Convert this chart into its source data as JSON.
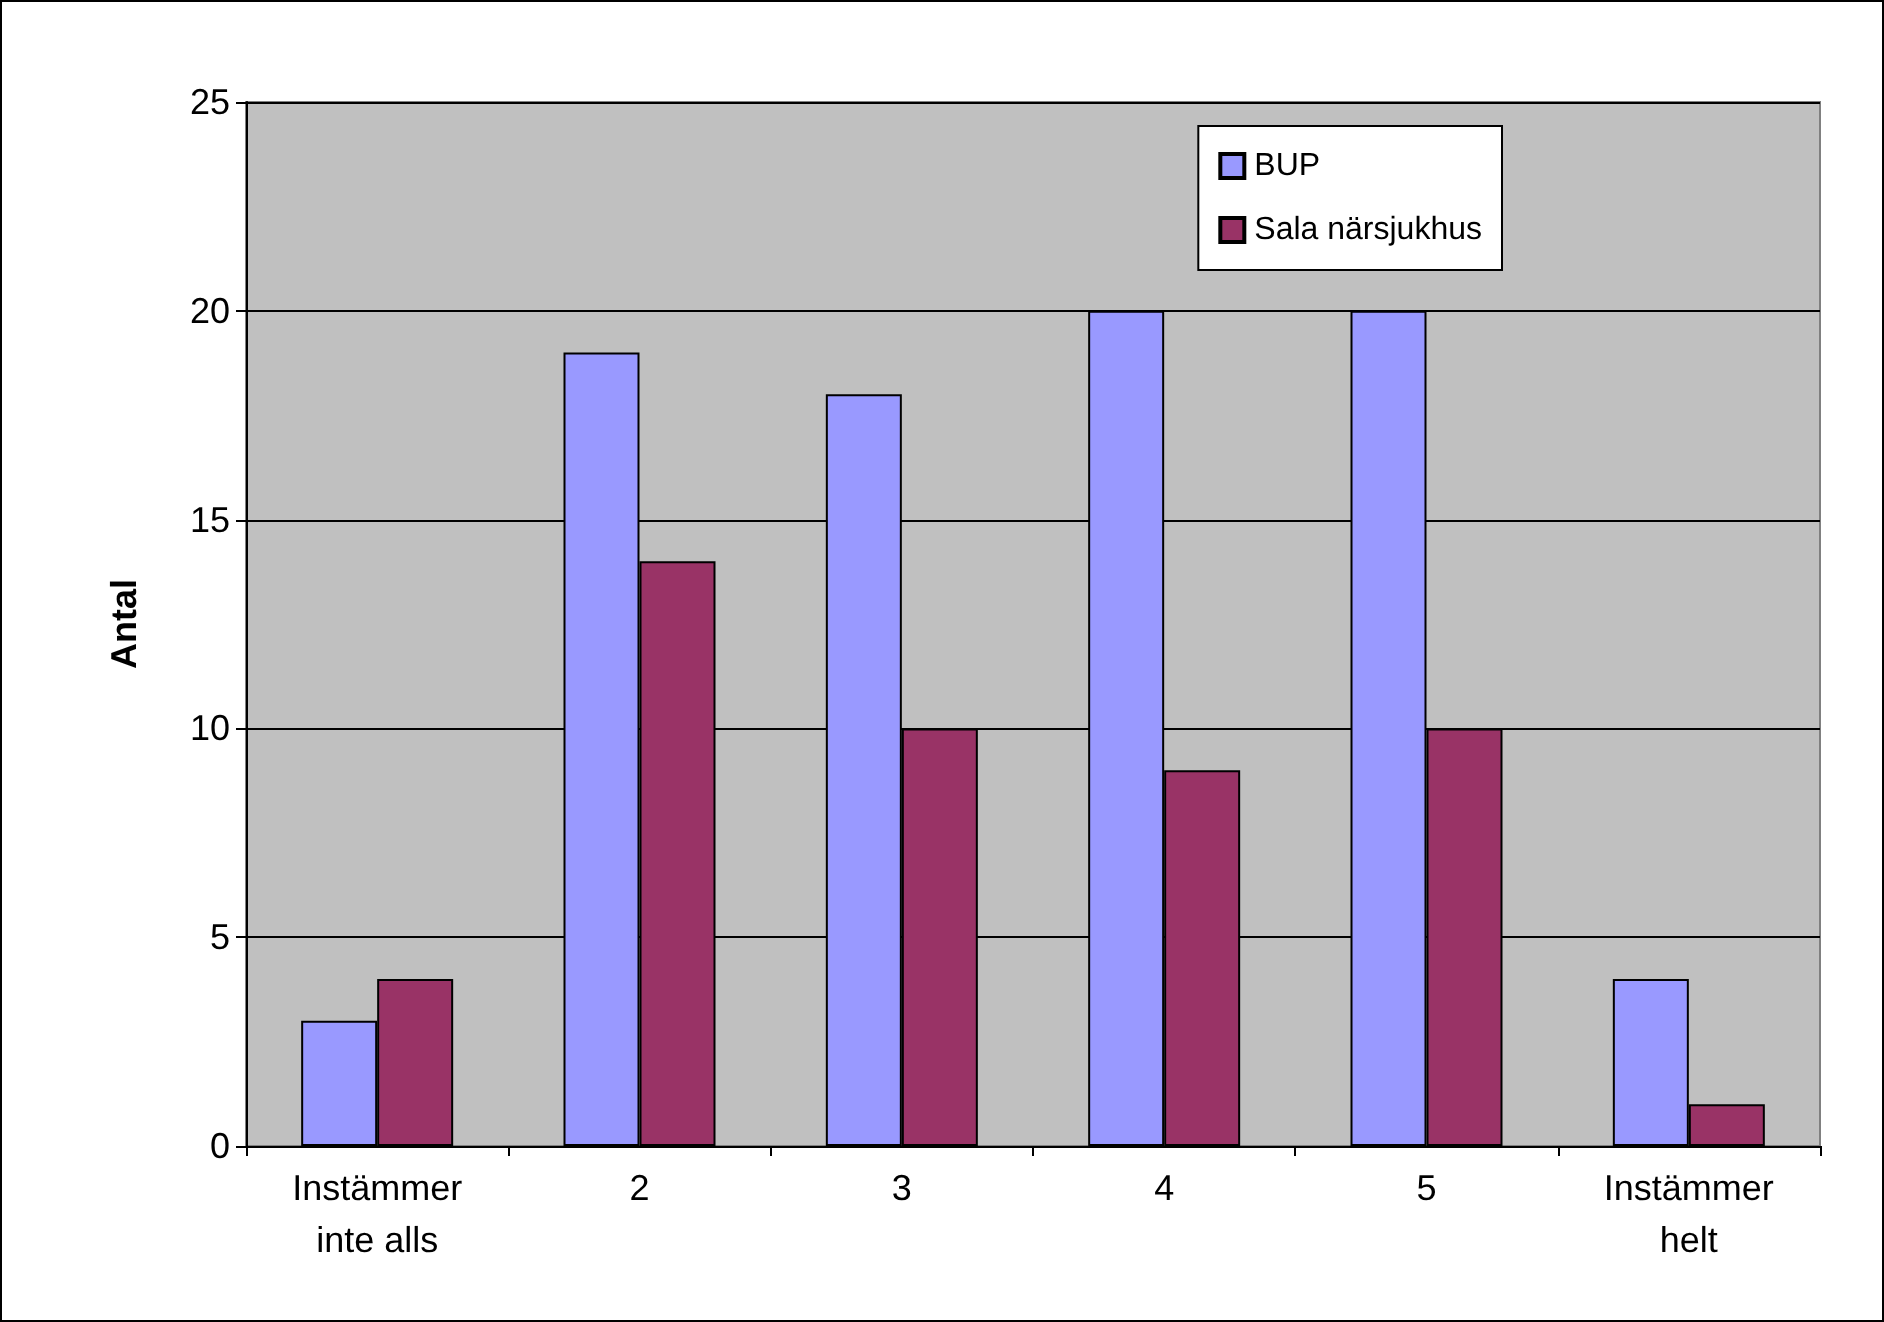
{
  "chart_data": {
    "type": "bar",
    "ylabel": "Antal",
    "categories": [
      "Instämmer\ninte alls",
      "2",
      "3",
      "4",
      "5",
      "Instämmer\nhelt"
    ],
    "series": [
      {
        "name": "BUP",
        "color": "#9999ff",
        "values": [
          3,
          19,
          18,
          20,
          20,
          4
        ]
      },
      {
        "name": "Sala närsjukhus",
        "color": "#993366",
        "values": [
          4,
          14,
          10,
          9,
          10,
          1
        ]
      }
    ],
    "ylim": [
      0,
      25
    ],
    "yticks": [
      0,
      5,
      10,
      15,
      20,
      25
    ],
    "grid": "y",
    "legend": "top right"
  }
}
